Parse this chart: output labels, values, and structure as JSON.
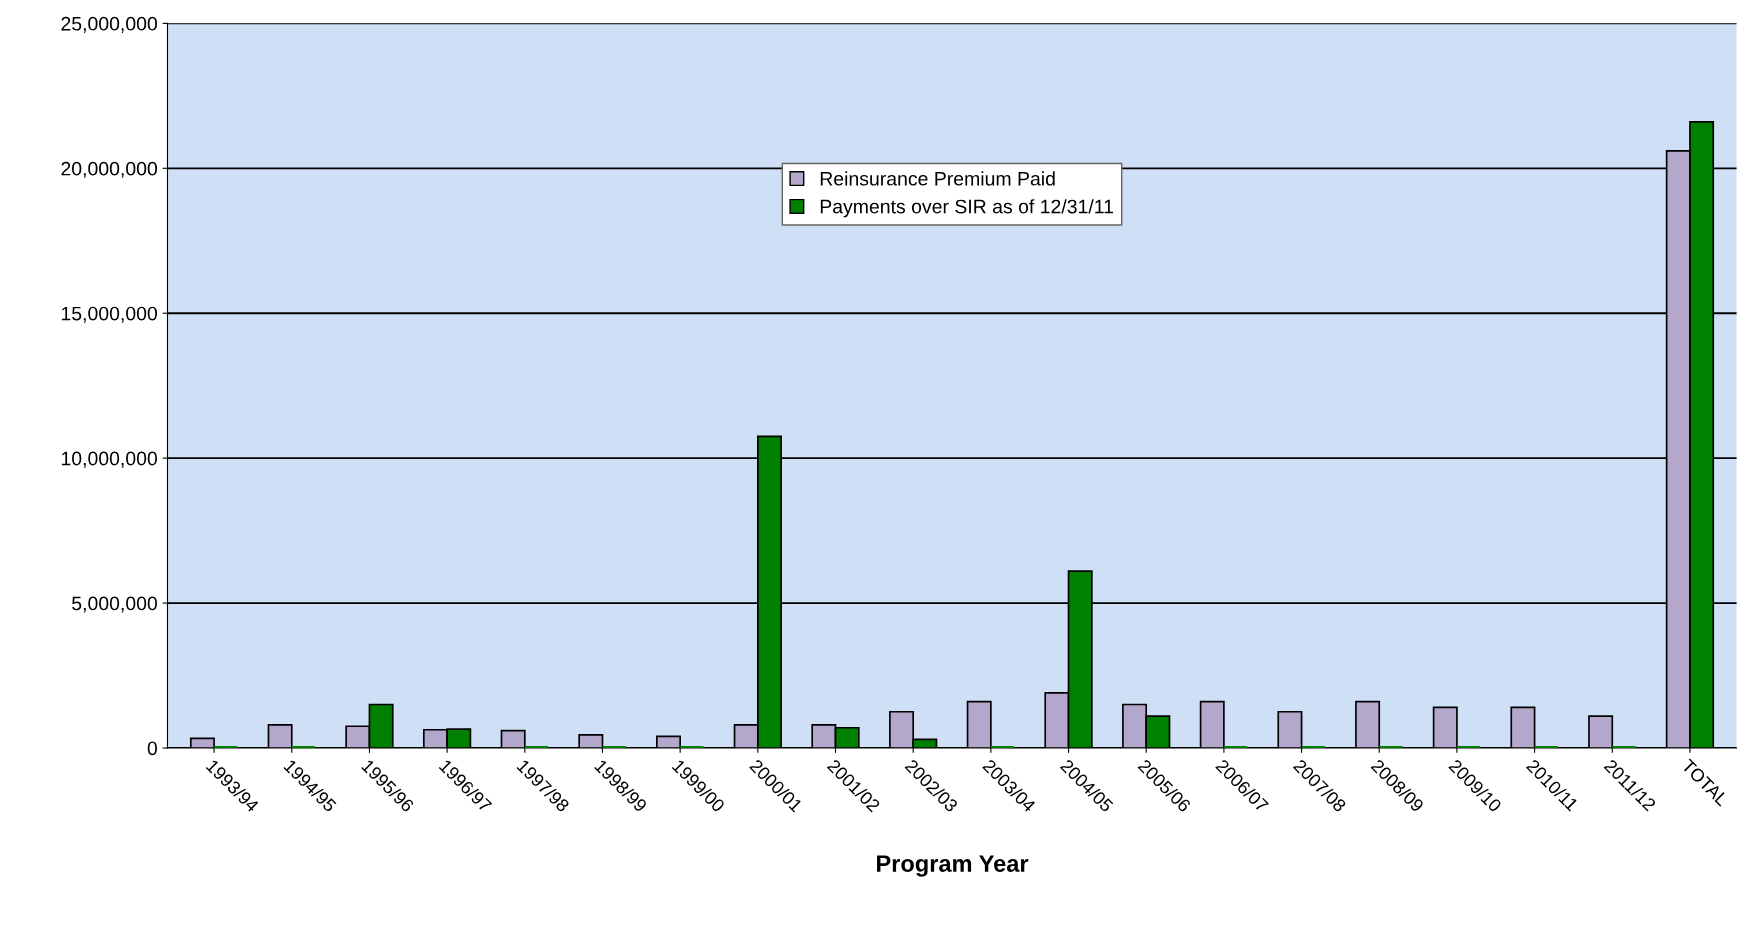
{
  "chart_data": {
    "type": "bar",
    "xlabel": "Program Year",
    "categories": [
      "1993/94",
      "1994/95",
      "1995/96",
      "1996/97",
      "1997/98",
      "1998/99",
      "1999/00",
      "2000/01",
      "2001/02",
      "2002/03",
      "2003/04",
      "2004/05",
      "2005/06",
      "2006/07",
      "2007/08",
      "2008/09",
      "2009/10",
      "2010/11",
      "2011/12",
      "TOTAL"
    ],
    "series": [
      {
        "name": "Reinsurance Premium Paid",
        "color": "#b4a7cc",
        "values": [
          330000,
          800000,
          750000,
          630000,
          600000,
          450000,
          400000,
          800000,
          800000,
          1250000,
          1600000,
          1900000,
          1500000,
          1600000,
          1250000,
          1600000,
          1400000,
          1400000,
          1100000,
          20600000
        ]
      },
      {
        "name": "Payments over SIR as of 12/31/11",
        "color": "#008000",
        "values": [
          0,
          0,
          1500000,
          650000,
          0,
          0,
          0,
          10750000,
          700000,
          300000,
          0,
          6100000,
          1100000,
          0,
          0,
          0,
          0,
          0,
          0,
          21600000
        ]
      }
    ],
    "ylim": [
      0,
      25000000
    ],
    "yticks": [
      {
        "value": 0,
        "label": "0"
      },
      {
        "value": 5000000,
        "label": "5,000,000"
      },
      {
        "value": 10000000,
        "label": "10,000,000"
      },
      {
        "value": 15000000,
        "label": "15,000,000"
      },
      {
        "value": 20000000,
        "label": "20,000,000"
      },
      {
        "value": 25000000,
        "label": "25,000,000"
      }
    ],
    "grid": "y",
    "legend": "top"
  }
}
